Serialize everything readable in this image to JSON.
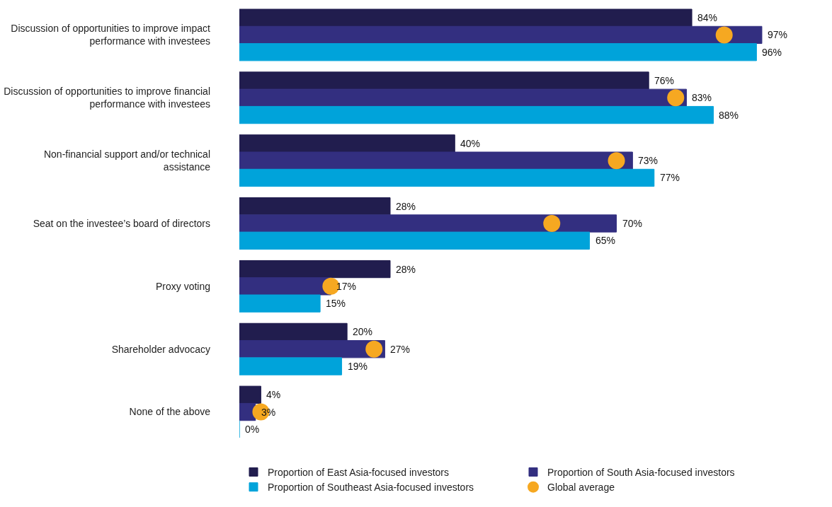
{
  "chart_data": {
    "type": "bar",
    "orientation": "horizontal",
    "categories": [
      "Discussion of opportunities to improve impact performance with investees",
      "Discussion of opportunities to improve financial performance with investees",
      "Non-financial support and/or technical assistance",
      "Seat on the investee’s board of directors",
      "Proxy voting",
      "Shareholder advocacy",
      "None of the above"
    ],
    "series": [
      {
        "name": "Proportion of East Asia-focused investors",
        "color": "#211d4e",
        "values": [
          84,
          76,
          40,
          28,
          28,
          20,
          4
        ],
        "value_labels": [
          "84%",
          "76%",
          "40%",
          "28%",
          "28%",
          "20%",
          "4%"
        ]
      },
      {
        "name": "Proportion of South Asia-focused investors",
        "color": "#332f80",
        "values": [
          97,
          83,
          73,
          70,
          17,
          27,
          3
        ],
        "value_labels": [
          "97%",
          "83%",
          "73%",
          "70%",
          "17%",
          "27%",
          "3%"
        ]
      },
      {
        "name": "Proportion of Southeast Asia-focused investors",
        "color": "#00a3da",
        "values": [
          96,
          88,
          77,
          65,
          15,
          19,
          0
        ],
        "value_labels": [
          "96%",
          "88%",
          "77%",
          "65%",
          "15%",
          "19%",
          "0%"
        ]
      },
      {
        "name": "Global average",
        "type": "scatter",
        "marker": "circle",
        "color": "#f6a821",
        "values": [
          90,
          81,
          70,
          58,
          17,
          25,
          4
        ]
      }
    ],
    "legend": "bottom"
  }
}
